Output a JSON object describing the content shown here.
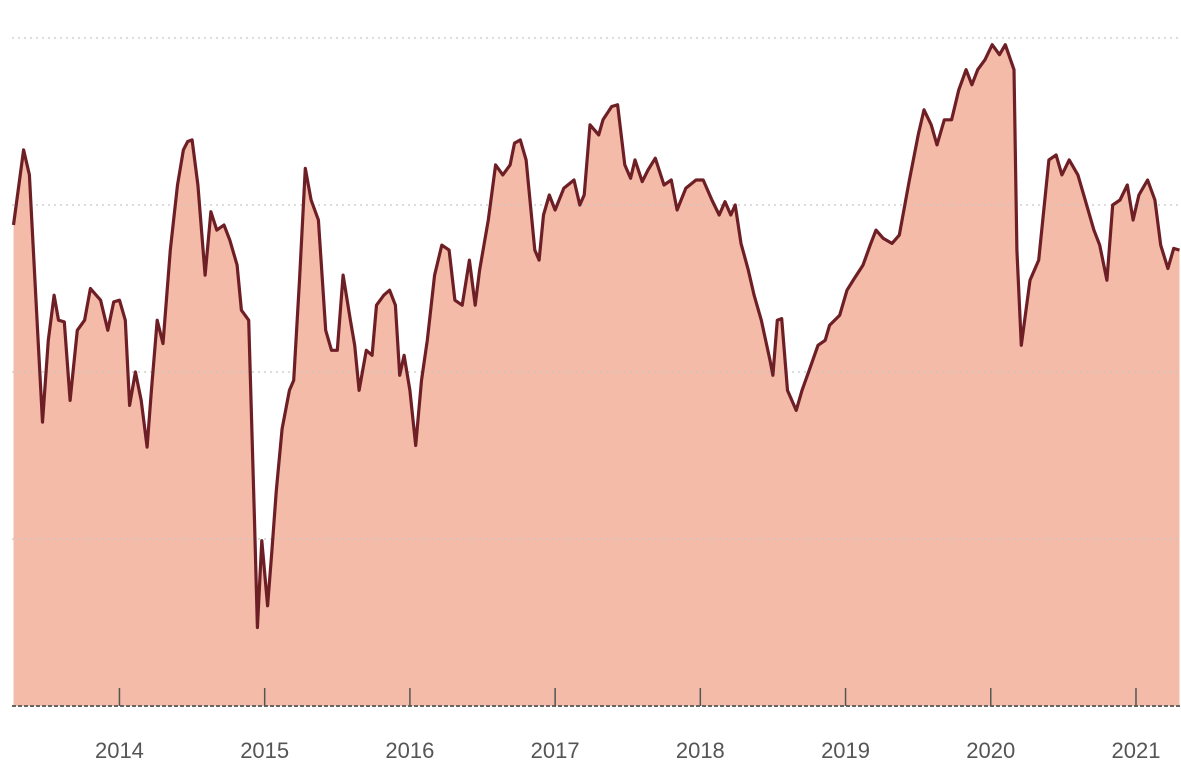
{
  "chart_data": {
    "type": "area",
    "x": [
      2013.27,
      2013.34,
      2013.38,
      2013.44,
      2013.47,
      2013.51,
      2013.55,
      2013.58,
      2013.62,
      2013.66,
      2013.71,
      2013.76,
      2013.8,
      2013.87,
      2013.92,
      2013.96,
      2014.0,
      2014.04,
      2014.07,
      2014.11,
      2014.15,
      2014.19,
      2014.22,
      2014.26,
      2014.3,
      2014.35,
      2014.4,
      2014.44,
      2014.47,
      2014.5,
      2014.54,
      2014.59,
      2014.63,
      2014.67,
      2014.72,
      2014.76,
      2014.81,
      2014.84,
      2014.89,
      2014.93,
      2014.95,
      2014.98,
      2015.02,
      2015.05,
      2015.08,
      2015.12,
      2015.17,
      2015.2,
      2015.24,
      2015.28,
      2015.32,
      2015.37,
      2015.42,
      2015.46,
      2015.5,
      2015.54,
      2015.59,
      2015.62,
      2015.65,
      2015.7,
      2015.74,
      2015.77,
      2015.82,
      2015.86,
      2015.9,
      2015.93,
      2015.96,
      2016.0,
      2016.04,
      2016.08,
      2016.12,
      2016.17,
      2016.22,
      2016.27,
      2016.31,
      2016.36,
      2016.41,
      2016.45,
      2016.48,
      2016.54,
      2016.59,
      2016.64,
      2016.69,
      2016.72,
      2016.76,
      2016.8,
      2016.86,
      2016.89,
      2016.92,
      2016.96,
      2017.0,
      2017.06,
      2017.13,
      2017.17,
      2017.2,
      2017.24,
      2017.3,
      2017.33,
      2017.39,
      2017.43,
      2017.48,
      2017.52,
      2017.55,
      2017.6,
      2017.64,
      2017.69,
      2017.75,
      2017.8,
      2017.84,
      2017.9,
      2017.97,
      2018.02,
      2018.08,
      2018.13,
      2018.17,
      2018.21,
      2018.24,
      2018.28,
      2018.33,
      2018.37,
      2018.42,
      2018.48,
      2018.5,
      2018.53,
      2018.56,
      2018.6,
      2018.66,
      2018.7,
      2018.75,
      2018.81,
      2018.86,
      2018.89,
      2018.96,
      2019.01,
      2019.06,
      2019.12,
      2019.17,
      2019.21,
      2019.26,
      2019.32,
      2019.37,
      2019.44,
      2019.5,
      2019.54,
      2019.59,
      2019.63,
      2019.68,
      2019.73,
      2019.78,
      2019.83,
      2019.87,
      2019.91,
      2019.96,
      2020.01,
      2020.06,
      2020.1,
      2020.16,
      2020.18,
      2020.21,
      2020.27,
      2020.33,
      2020.4,
      2020.45,
      2020.49,
      2020.54,
      2020.6,
      2020.65,
      2020.71,
      2020.75,
      2020.8,
      2020.84,
      2020.89,
      2020.94,
      2020.98,
      2021.02,
      2021.08,
      2021.13,
      2021.17,
      2021.22,
      2021.26,
      2021.3
    ],
    "values": [
      2.88,
      3.33,
      3.18,
      2.19,
      1.7,
      2.19,
      2.46,
      2.31,
      2.3,
      1.83,
      2.25,
      2.31,
      2.5,
      2.43,
      2.25,
      2.42,
      2.43,
      2.31,
      1.8,
      2.0,
      1.83,
      1.55,
      1.89,
      2.31,
      2.17,
      2.73,
      3.12,
      3.33,
      3.38,
      3.39,
      3.12,
      2.58,
      2.96,
      2.85,
      2.88,
      2.79,
      2.64,
      2.37,
      2.31,
      1.11,
      0.47,
      0.99,
      0.6,
      0.93,
      1.29,
      1.66,
      1.89,
      1.95,
      2.55,
      3.22,
      3.03,
      2.91,
      2.25,
      2.13,
      2.13,
      2.58,
      2.31,
      2.16,
      1.89,
      2.13,
      2.1,
      2.4,
      2.46,
      2.49,
      2.4,
      1.98,
      2.1,
      1.89,
      1.56,
      1.95,
      2.19,
      2.58,
      2.76,
      2.73,
      2.43,
      2.4,
      2.67,
      2.4,
      2.61,
      2.91,
      3.24,
      3.18,
      3.24,
      3.37,
      3.39,
      3.27,
      2.73,
      2.67,
      2.94,
      3.06,
      2.97,
      3.1,
      3.15,
      3.0,
      3.06,
      3.48,
      3.42,
      3.51,
      3.59,
      3.6,
      3.24,
      3.16,
      3.27,
      3.14,
      3.21,
      3.28,
      3.12,
      3.15,
      2.97,
      3.1,
      3.15,
      3.15,
      3.03,
      2.94,
      3.02,
      2.94,
      3.0,
      2.77,
      2.61,
      2.46,
      2.31,
      2.07,
      1.98,
      2.31,
      2.32,
      1.89,
      1.77,
      1.89,
      2.01,
      2.16,
      2.19,
      2.28,
      2.34,
      2.49,
      2.56,
      2.64,
      2.76,
      2.85,
      2.8,
      2.77,
      2.82,
      3.15,
      3.42,
      3.57,
      3.48,
      3.36,
      3.51,
      3.51,
      3.69,
      3.81,
      3.72,
      3.81,
      3.87,
      3.96,
      3.9,
      3.96,
      3.81,
      2.73,
      2.16,
      2.55,
      2.67,
      3.27,
      3.3,
      3.18,
      3.27,
      3.18,
      3.03,
      2.85,
      2.76,
      2.55,
      3.0,
      3.03,
      3.12,
      2.91,
      3.06,
      3.15,
      3.03,
      2.76,
      2.62,
      2.74,
      2.73
    ],
    "color": "#f4bba9",
    "line_color": "#6e1f26",
    "xlim": [
      2013.26,
      2021.31
    ],
    "xticks": [
      2014,
      2015,
      2016,
      2017,
      2018,
      2019,
      2020,
      2021
    ],
    "ylim": [
      0,
      4.2
    ],
    "yticks": [
      1,
      2,
      3,
      4
    ],
    "grid": true
  }
}
